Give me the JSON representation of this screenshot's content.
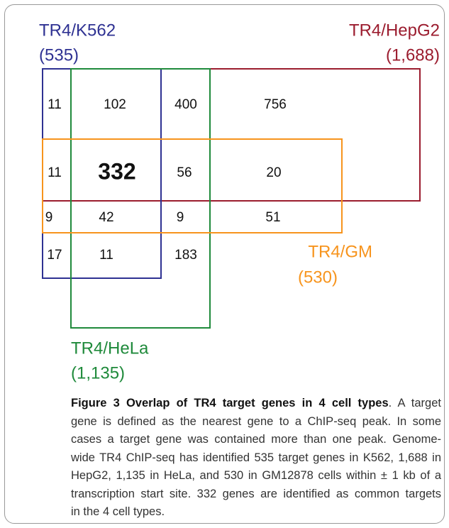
{
  "diagram": {
    "sets": [
      {
        "name": "TR4/K562",
        "count": "(535)"
      },
      {
        "name": "TR4/HepG2",
        "count": "(1,688)"
      },
      {
        "name": "TR4/GM",
        "count": "(530)"
      },
      {
        "name": "TR4/HeLa",
        "count": "(1,135)"
      }
    ],
    "cells": [
      [
        "11",
        "102",
        "400",
        "756"
      ],
      [
        "11",
        "332",
        "56",
        "20"
      ],
      [
        "9",
        "42",
        "9",
        "51"
      ],
      [
        "17",
        "11",
        "183"
      ]
    ]
  },
  "caption": {
    "title": "Figure 3 Overlap of TR4 target genes in 4 cell types",
    "lines": [
      ". A target",
      "gene is defined as the nearest gene to a ChIP-seq peak. In some",
      "cases a target gene was contained more than one peak. Genome-",
      "wide TR4 ChIP-seq has identified 535 target genes in K562, 1,688 in",
      "HepG2, 1,135 in HeLa, and 530 in GM12878 cells within ± 1 kb of a",
      "transcription start site. 332 genes are identified as common targets",
      "in the 4 cell types."
    ]
  }
}
